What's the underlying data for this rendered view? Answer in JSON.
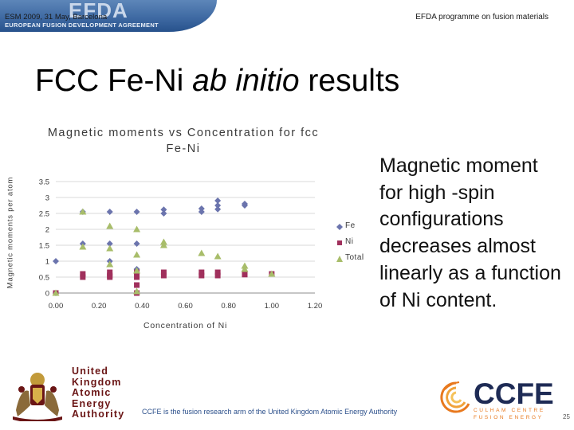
{
  "header": {
    "logo_text": "EFDA",
    "agreement_text": "EUROPEAN FUSION DEVELOPMENT AGREEMENT",
    "event": "ESM 2009, 31 May, Barcelona",
    "programme": "EFDA programme on fusion materials"
  },
  "slide": {
    "title_prefix": "FCC Fe-Ni ",
    "title_italic": "ab initio",
    "title_suffix": " results",
    "description": "Magnetic moment for high -spin configurations decreases almost linearly as a function of Ni content."
  },
  "chart_data": {
    "type": "scatter",
    "title": "Magnetic moments vs Concentration for fcc Fe-Ni",
    "xlabel": "Concentration of Ni",
    "ylabel": "Magnetic moments per atom",
    "xlim": [
      0,
      1.2
    ],
    "ylim": [
      0,
      3.5
    ],
    "x_ticks": [
      "0.00",
      "0.20",
      "0.40",
      "0.60",
      "0.80",
      "1.00",
      "1.20"
    ],
    "y_ticks": [
      "0",
      "0.5",
      "1",
      "1.5",
      "2",
      "2.5",
      "3",
      "3.5"
    ],
    "grid": "horizontal",
    "legend": "right",
    "series": [
      {
        "name": "Fe",
        "marker": "diamond",
        "color": "#6b74ad",
        "points": [
          [
            0.0,
            1.0
          ],
          [
            0.0,
            0.0
          ],
          [
            0.125,
            2.55
          ],
          [
            0.125,
            1.55
          ],
          [
            0.25,
            2.55
          ],
          [
            0.25,
            1.55
          ],
          [
            0.25,
            1.0
          ],
          [
            0.375,
            2.55
          ],
          [
            0.375,
            1.55
          ],
          [
            0.375,
            0.75
          ],
          [
            0.5,
            2.62
          ],
          [
            0.5,
            2.5
          ],
          [
            0.675,
            2.65
          ],
          [
            0.675,
            2.55
          ],
          [
            0.75,
            2.9
          ],
          [
            0.75,
            2.75
          ],
          [
            0.75,
            2.63
          ],
          [
            0.875,
            2.8
          ],
          [
            0.875,
            2.75
          ]
        ]
      },
      {
        "name": "Ni",
        "marker": "square",
        "color": "#a0305c",
        "points": [
          [
            0.0,
            0.0
          ],
          [
            0.125,
            0.6
          ],
          [
            0.125,
            0.5
          ],
          [
            0.25,
            0.65
          ],
          [
            0.25,
            0.55
          ],
          [
            0.25,
            0.5
          ],
          [
            0.375,
            0.65
          ],
          [
            0.375,
            0.5
          ],
          [
            0.375,
            0.25
          ],
          [
            0.375,
            0.0
          ],
          [
            0.5,
            0.65
          ],
          [
            0.5,
            0.55
          ],
          [
            0.675,
            0.65
          ],
          [
            0.675,
            0.55
          ],
          [
            0.75,
            0.65
          ],
          [
            0.75,
            0.55
          ],
          [
            0.875,
            0.6
          ],
          [
            0.875,
            0.58
          ],
          [
            1.0,
            0.6
          ]
        ]
      },
      {
        "name": "Total",
        "marker": "triangle",
        "color": "#a8bd6a",
        "points": [
          [
            0.0,
            0.0
          ],
          [
            0.125,
            2.55
          ],
          [
            0.125,
            1.45
          ],
          [
            0.25,
            2.1
          ],
          [
            0.25,
            1.4
          ],
          [
            0.25,
            0.9
          ],
          [
            0.375,
            2.0
          ],
          [
            0.375,
            1.2
          ],
          [
            0.375,
            0.7
          ],
          [
            0.375,
            0.05
          ],
          [
            0.5,
            1.6
          ],
          [
            0.5,
            1.5
          ],
          [
            0.675,
            1.25
          ],
          [
            0.75,
            1.15
          ],
          [
            0.875,
            0.85
          ],
          [
            0.875,
            0.75
          ],
          [
            1.0,
            0.6
          ]
        ]
      }
    ]
  },
  "footer": {
    "ukaea_lines": [
      "United",
      "Kingdom",
      "Atomic",
      "Energy",
      "Authority"
    ],
    "caption": "CCFE is the fusion research arm of the United Kingdom Atomic Energy Authority",
    "ccfe_name": "CCFE",
    "ccfe_sub1": "CULHAM CENTRE",
    "ccfe_sub2": "FUSION ENERGY",
    "page_number": "25"
  }
}
